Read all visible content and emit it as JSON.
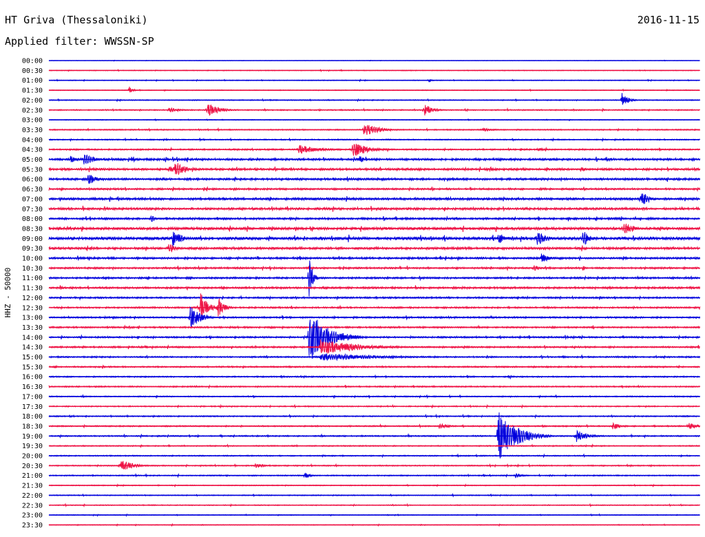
{
  "header": {
    "station": "HT Griva (Thessaloniki)",
    "date": "2016-11-15",
    "filter": "Applied filter: WWSSN-SP"
  },
  "chart_data": {
    "type": "line",
    "title": "HT Griva (Thessaloniki)",
    "subtitle": "Applied filter: WWSSN-SP",
    "date": "2016-11-15",
    "ylabel": "HHZ - 50000",
    "xlim_minutes": [
      0,
      30
    ],
    "row_labels": [
      "00:00",
      "00:30",
      "01:00",
      "01:30",
      "02:00",
      "02:30",
      "03:00",
      "03:30",
      "04:00",
      "04:30",
      "05:00",
      "05:30",
      "06:00",
      "06:30",
      "07:00",
      "07:30",
      "08:00",
      "08:30",
      "09:00",
      "09:30",
      "10:00",
      "10:30",
      "11:00",
      "11:30",
      "12:00",
      "12:30",
      "13:00",
      "13:30",
      "14:00",
      "14:30",
      "15:00",
      "15:30",
      "16:00",
      "16:30",
      "17:00",
      "17:30",
      "18:00",
      "18:30",
      "19:00",
      "19:30",
      "20:00",
      "20:30",
      "21:00",
      "21:30",
      "22:00",
      "22:30",
      "23:00",
      "23:30"
    ],
    "colors": [
      "#0000dd",
      "#ee1144"
    ],
    "background_noise_by_row": [
      0.2,
      0.4,
      0.4,
      0.4,
      0.5,
      0.6,
      0.4,
      0.6,
      0.6,
      0.8,
      1.2,
      1.2,
      1.2,
      1.0,
      1.3,
      1.3,
      1.1,
      1.5,
      1.6,
      1.3,
      1.1,
      1.0,
      1.0,
      1.1,
      0.9,
      0.9,
      0.9,
      0.9,
      0.9,
      0.9,
      0.8,
      0.8,
      0.7,
      0.7,
      0.6,
      0.6,
      0.6,
      0.7,
      0.7,
      0.6,
      0.6,
      0.6,
      0.6,
      0.5,
      0.5,
      0.5,
      0.4,
      0.4
    ],
    "events": [
      {
        "row": 2,
        "minute": 17.5,
        "amplitude": 4,
        "duration_min": 0.4
      },
      {
        "row": 3,
        "minute": 3.7,
        "amplitude": 6,
        "duration_min": 0.5
      },
      {
        "row": 4,
        "minute": 26.4,
        "amplitude": 12,
        "duration_min": 0.8
      },
      {
        "row": 5,
        "minute": 5.5,
        "amplitude": 4,
        "duration_min": 1.5
      },
      {
        "row": 5,
        "minute": 7.3,
        "amplitude": 11,
        "duration_min": 1.5
      },
      {
        "row": 5,
        "minute": 17.3,
        "amplitude": 9,
        "duration_min": 1.2
      },
      {
        "row": 7,
        "minute": 14.5,
        "amplitude": 10,
        "duration_min": 2.0
      },
      {
        "row": 7,
        "minute": 20.0,
        "amplitude": 3,
        "duration_min": 1.5
      },
      {
        "row": 9,
        "minute": 11.5,
        "amplitude": 7,
        "duration_min": 3.0
      },
      {
        "row": 9,
        "minute": 14.0,
        "amplitude": 12,
        "duration_min": 2.0
      },
      {
        "row": 9,
        "minute": 22.5,
        "amplitude": 3,
        "duration_min": 1.0
      },
      {
        "row": 10,
        "minute": 1.0,
        "amplitude": 5,
        "duration_min": 1.5
      },
      {
        "row": 10,
        "minute": 1.6,
        "amplitude": 11,
        "duration_min": 1.2
      },
      {
        "row": 10,
        "minute": 14.3,
        "amplitude": 8,
        "duration_min": 0.6
      },
      {
        "row": 11,
        "minute": 5.5,
        "amplitude": 5,
        "duration_min": 2.0
      },
      {
        "row": 11,
        "minute": 5.8,
        "amplitude": 14,
        "duration_min": 1.2
      },
      {
        "row": 11,
        "minute": 24.5,
        "amplitude": 4,
        "duration_min": 1.0
      },
      {
        "row": 12,
        "minute": 1.8,
        "amplitude": 10,
        "duration_min": 1.0
      },
      {
        "row": 14,
        "minute": 27.3,
        "amplitude": 13,
        "duration_min": 1.0
      },
      {
        "row": 16,
        "minute": 4.7,
        "amplitude": 7,
        "duration_min": 0.5
      },
      {
        "row": 17,
        "minute": 26.5,
        "amplitude": 10,
        "duration_min": 1.2
      },
      {
        "row": 18,
        "minute": 5.7,
        "amplitude": 16,
        "duration_min": 1.0
      },
      {
        "row": 18,
        "minute": 20.7,
        "amplitude": 9,
        "duration_min": 1.0
      },
      {
        "row": 18,
        "minute": 22.5,
        "amplitude": 12,
        "duration_min": 1.2
      },
      {
        "row": 18,
        "minute": 24.6,
        "amplitude": 14,
        "duration_min": 0.8
      },
      {
        "row": 19,
        "minute": 5.5,
        "amplitude": 8,
        "duration_min": 1.0
      },
      {
        "row": 20,
        "minute": 22.7,
        "amplitude": 7,
        "duration_min": 1.2
      },
      {
        "row": 21,
        "minute": 22.3,
        "amplitude": 5,
        "duration_min": 1.0
      },
      {
        "row": 22,
        "minute": 12.0,
        "amplitude": 45,
        "duration_min": 0.4
      },
      {
        "row": 25,
        "minute": 7.0,
        "amplitude": 22,
        "duration_min": 1.0
      },
      {
        "row": 25,
        "minute": 7.8,
        "amplitude": 16,
        "duration_min": 0.8
      },
      {
        "row": 26,
        "minute": 6.5,
        "amplitude": 22,
        "duration_min": 1.2
      },
      {
        "row": 28,
        "minute": 12.0,
        "amplitude": 40,
        "duration_min": 2.5
      },
      {
        "row": 29,
        "minute": 12.5,
        "amplitude": 12,
        "duration_min": 5.0
      },
      {
        "row": 30,
        "minute": 12.5,
        "amplitude": 6,
        "duration_min": 8.0
      },
      {
        "row": 37,
        "minute": 18.0,
        "amplitude": 4,
        "duration_min": 1.5
      },
      {
        "row": 37,
        "minute": 26.0,
        "amplitude": 6,
        "duration_min": 1.0
      },
      {
        "row": 37,
        "minute": 29.5,
        "amplitude": 6,
        "duration_min": 1.5
      },
      {
        "row": 38,
        "minute": 20.7,
        "amplitude": 38,
        "duration_min": 2.5
      },
      {
        "row": 38,
        "minute": 24.3,
        "amplitude": 10,
        "duration_min": 1.5
      },
      {
        "row": 41,
        "minute": 3.3,
        "amplitude": 10,
        "duration_min": 1.5
      },
      {
        "row": 41,
        "minute": 9.5,
        "amplitude": 5,
        "duration_min": 1.0
      },
      {
        "row": 42,
        "minute": 11.8,
        "amplitude": 6,
        "duration_min": 0.6
      },
      {
        "row": 42,
        "minute": 21.5,
        "amplitude": 5,
        "duration_min": 0.8
      }
    ]
  }
}
